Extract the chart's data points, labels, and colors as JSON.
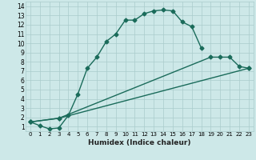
{
  "background_color": "#cde8e8",
  "grid_color": "#aacccc",
  "line_color": "#1a6b5a",
  "xlabel": "Humidex (Indice chaleur)",
  "xlim": [
    -0.5,
    23.5
  ],
  "ylim": [
    0.5,
    14.5
  ],
  "xtick_vals": [
    0,
    1,
    2,
    3,
    4,
    5,
    6,
    7,
    8,
    9,
    10,
    11,
    12,
    13,
    14,
    15,
    16,
    17,
    18,
    19,
    20,
    21,
    22,
    23
  ],
  "ytick_vals": [
    1,
    2,
    3,
    4,
    5,
    6,
    7,
    8,
    9,
    10,
    11,
    12,
    13,
    14
  ],
  "curve1_x": [
    0,
    1,
    2,
    3,
    4,
    5,
    6,
    7,
    8,
    9,
    10,
    11,
    12,
    13,
    14,
    15,
    16,
    17,
    18
  ],
  "curve1_y": [
    1.5,
    1.1,
    0.75,
    0.85,
    2.2,
    4.5,
    7.3,
    8.5,
    10.2,
    11.0,
    12.5,
    12.5,
    13.2,
    13.5,
    13.6,
    13.5,
    12.3,
    11.8,
    9.5
  ],
  "curve2_x": [
    0,
    3,
    19,
    20,
    21,
    22,
    23
  ],
  "curve2_y": [
    1.5,
    1.9,
    8.5,
    8.5,
    8.5,
    7.5,
    7.3
  ],
  "curve3_x": [
    0,
    3,
    23
  ],
  "curve3_y": [
    1.5,
    1.9,
    7.3
  ],
  "marker_size": 2.5,
  "linewidth": 1.0,
  "xlabel_fontsize": 6.5,
  "tick_fontsize_x": 5.0,
  "tick_fontsize_y": 5.5
}
